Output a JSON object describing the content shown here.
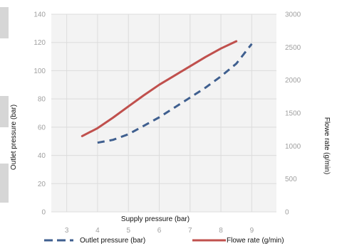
{
  "chart_data": {
    "type": "line",
    "title": "",
    "xlabel": "Supply pressure (bar)",
    "ylabel": "Outlet pressure (bar)",
    "y2label": "Flowe rate (g/min)",
    "xlim": [
      2.5,
      9.8
    ],
    "ylim": [
      0,
      140
    ],
    "y2lim": [
      0,
      3000
    ],
    "x_ticks": [
      "3",
      "4",
      "5",
      "6",
      "7",
      "8",
      "9"
    ],
    "y_ticks": [
      "0",
      "20",
      "40",
      "60",
      "80",
      "100",
      "120",
      "140"
    ],
    "y2_ticks": [
      "0",
      "500",
      "1000",
      "1500",
      "2000",
      "2500",
      "3000"
    ],
    "grid": true,
    "legend_position": "bottom",
    "series": [
      {
        "name": "Outlet pressure (bar)",
        "axis": "left",
        "color": "#3f5f8f",
        "style": "dashed",
        "x": [
          4.0,
          4.5,
          5.0,
          5.5,
          6.0,
          6.5,
          7.0,
          7.5,
          8.0,
          8.5,
          9.0
        ],
        "y": [
          49,
          51,
          55,
          61,
          67,
          74,
          81,
          88,
          96,
          105,
          119
        ]
      },
      {
        "name": "Flowe rate (g/min)",
        "axis": "right",
        "color": "#c0504d",
        "style": "solid",
        "x": [
          3.5,
          4.0,
          4.5,
          5.0,
          5.5,
          6.0,
          6.5,
          7.0,
          7.5,
          8.0,
          8.5
        ],
        "y": [
          1150,
          1270,
          1430,
          1600,
          1770,
          1930,
          2070,
          2210,
          2350,
          2480,
          2590
        ]
      }
    ]
  }
}
